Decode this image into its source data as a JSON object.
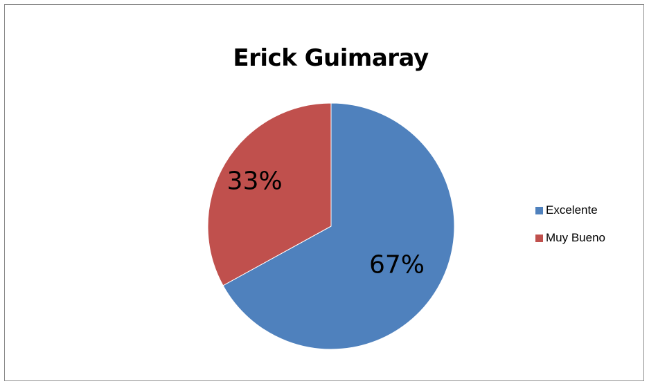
{
  "chart_data": {
    "type": "pie",
    "title": "Erick Guimaray",
    "categories": [
      "Excelente",
      "Muy Bueno"
    ],
    "values": [
      67,
      33
    ],
    "data_labels": [
      "67%",
      "33%"
    ],
    "colors": [
      "#4f81bd",
      "#c0504d"
    ],
    "legend_position": "right"
  },
  "legend": {
    "items": [
      {
        "label": "Excelente",
        "color": "#4f81bd"
      },
      {
        "label": "Muy Bueno",
        "color": "#c0504d"
      }
    ]
  }
}
